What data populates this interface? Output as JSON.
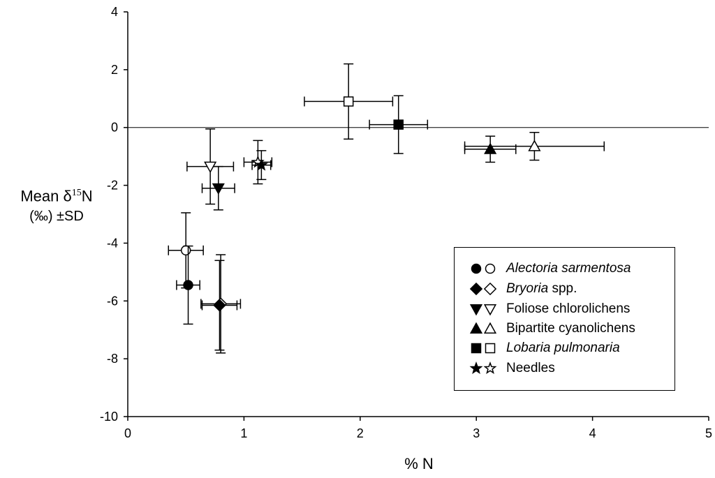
{
  "chart_data": {
    "type": "scatter",
    "title": "",
    "xlabel": "% N",
    "ylabel_line1": "Mean δ",
    "ylabel_sup": "15",
    "ylabel_N": "N",
    "ylabel_line2": "(‰) ±SD",
    "xlim": [
      0,
      5
    ],
    "ylim": [
      -10,
      4
    ],
    "x_ticks": [
      "0",
      "1",
      "2",
      "3",
      "4",
      "5"
    ],
    "y_ticks": [
      "4",
      "2",
      "0",
      "-2",
      "-4",
      "-6",
      "-8",
      "-10"
    ],
    "reference_line_y": 0,
    "series": [
      {
        "name": "Alectoria sarmentosa",
        "name_style": "italic",
        "name_suffix": "",
        "shape": "circle",
        "points": [
          {
            "filled": true,
            "x": 0.52,
            "y": -5.45,
            "xerr": 0.1,
            "yerr": 1.35
          },
          {
            "filled": false,
            "x": 0.5,
            "y": -4.25,
            "xerr": 0.15,
            "yerr": 1.3
          }
        ]
      },
      {
        "name": "Bryoria",
        "name_style": "italic",
        "name_suffix": " spp.",
        "shape": "diamond",
        "points": [
          {
            "filled": true,
            "x": 0.79,
            "y": -6.15,
            "xerr": 0.15,
            "yerr": 1.55
          },
          {
            "filled": false,
            "x": 0.8,
            "y": -6.1,
            "xerr": 0.17,
            "yerr": 1.7
          }
        ]
      },
      {
        "name": "Foliose chlorolichens",
        "name_style": "normal",
        "name_suffix": "",
        "shape": "triangle-down",
        "points": [
          {
            "filled": true,
            "x": 0.78,
            "y": -2.1,
            "xerr": 0.14,
            "yerr": 0.75
          },
          {
            "filled": false,
            "x": 0.71,
            "y": -1.35,
            "xerr": 0.2,
            "yerr": 1.3
          }
        ]
      },
      {
        "name": "Bipartite cyanolichens",
        "name_style": "normal",
        "name_suffix": "",
        "shape": "triangle-up",
        "points": [
          {
            "filled": true,
            "x": 3.12,
            "y": -0.75,
            "xerr": 0.22,
            "yerr": 0.45
          },
          {
            "filled": false,
            "x": 3.5,
            "y": -0.65,
            "xerr": 0.6,
            "yerr": 0.48
          }
        ]
      },
      {
        "name": "Lobaria pulmonaria",
        "name_style": "italic",
        "name_suffix": "",
        "shape": "square",
        "points": [
          {
            "filled": true,
            "x": 2.33,
            "y": 0.1,
            "xerr": 0.25,
            "yerr": 1.0
          },
          {
            "filled": false,
            "x": 1.9,
            "y": 0.9,
            "xerr": 0.38,
            "yerr": 1.3
          }
        ]
      },
      {
        "name": "Needles",
        "name_style": "normal",
        "name_suffix": "",
        "shape": "star",
        "points": [
          {
            "filled": true,
            "x": 1.15,
            "y": -1.3,
            "xerr": 0.08,
            "yerr": 0.5
          },
          {
            "filled": false,
            "x": 1.12,
            "y": -1.2,
            "xerr": 0.12,
            "yerr": 0.75
          }
        ]
      }
    ]
  }
}
